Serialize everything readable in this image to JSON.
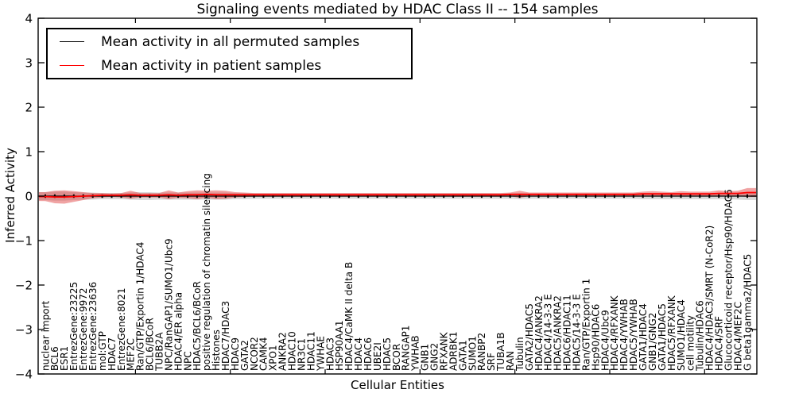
{
  "chart": {
    "title": "Signaling events mediated by HDAC Class II -- 154 samples",
    "xlabel": "Cellular Entities",
    "ylabel": "Inferred Activity"
  },
  "legend": {
    "items": [
      {
        "label": "Mean activity in all permuted samples",
        "color": "#000000"
      },
      {
        "label": "Mean activity in patient samples",
        "color": "#ff0000"
      }
    ]
  },
  "chart_data": {
    "type": "line",
    "title": "Signaling events mediated by HDAC Class II -- 154 samples",
    "xlabel": "Cellular Entities",
    "ylabel": "Inferred Activity",
    "ylim": [
      -4,
      4
    ],
    "grid": false,
    "legend_position": "upper left",
    "y_ticks": [
      {
        "v": 4,
        "label": "4"
      },
      {
        "v": 3,
        "label": "3"
      },
      {
        "v": 2,
        "label": "2"
      },
      {
        "v": 1,
        "label": "1"
      },
      {
        "v": 0,
        "label": "0"
      },
      {
        "v": -1,
        "label": "−1"
      },
      {
        "v": -2,
        "label": "−2"
      },
      {
        "v": -3,
        "label": "−3"
      },
      {
        "v": -4,
        "label": "−4"
      }
    ],
    "x_major_ticks": [
      10,
      20,
      30,
      40,
      50,
      60,
      70
    ],
    "categories": [
      "nuclear import",
      "BCL6",
      "ESR1",
      "EntrezGene:23225",
      "EntrezGene:9972",
      "EntrezGene:23636",
      "mol:GTP",
      "HDAC7",
      "EntrezGene:8021",
      "MEF2C",
      "Ran/GTP/Exportin 1/HDAC4",
      "BCL6/BCoR",
      "TUBB2A",
      "NPC/RanGAP1/SUMO1/Ubc9",
      "HDAC4/ER alpha",
      "NPC",
      "HDAC5/BCL6/BCoR",
      "positive regulation of chromatin silencing",
      "Histones",
      "HDAC7/HDAC3",
      "HDAC9",
      "GATA2",
      "NCOR2",
      "CAMK4",
      "XPO1",
      "ANKRA2",
      "HDAC10",
      "NR3C1",
      "HDAC11",
      "YWHAE",
      "HDAC3",
      "HSP90AA1",
      "HDAC4/CaMK II delta B",
      "HDAC4",
      "HDAC6",
      "UBE2I",
      "HDAC5",
      "BCOR",
      "RANGAP1",
      "YWHAB",
      "GNB1",
      "GNG2",
      "RFXANK",
      "ADRBK1",
      "GATA1",
      "SUMO1",
      "RANBP2",
      "SRF",
      "TUBA1B",
      "RAN",
      "Tubulin",
      "GATA2/HDAC5",
      "HDAC4/ANKRA2",
      "HDAC4/14-3-3 E",
      "HDAC5/ANKRA2",
      "HDAC6/HDAC11",
      "HDAC5/14-3-3 E",
      "Ran/GTP/Exportin 1",
      "Hsp90/HDAC6",
      "HDAC4/Ubc9",
      "HDAC4/RFXANK",
      "HDAC4/YWHAB",
      "HDAC5/YWHAB",
      "GATA1/HDAC4",
      "GNB1/GNG2",
      "GATA1/HDAC5",
      "HDAC5/RFXANK",
      "SUMO1/HDAC4",
      "cell motility",
      "Tubulin/HDAC6",
      "HDAC4/HDAC3/SMRT (N-CoR2)",
      "HDAC4/SRF",
      "Glucocorticoid receptor/Hsp90/HDAC6",
      "HDAC4/MEF2C",
      "G beta1gamma2/HDAC5"
    ],
    "series": [
      {
        "name": "Mean activity in all permuted samples",
        "color": "#000000",
        "band_color": "#aaaaaa",
        "band_opacity": 0.45,
        "markers": true,
        "mean": [
          0,
          0,
          0,
          0,
          0,
          0,
          0,
          0,
          0,
          0,
          0,
          0,
          0,
          0,
          0,
          0,
          0,
          0,
          0,
          0,
          0,
          0,
          0,
          0,
          0,
          0,
          0,
          0,
          0,
          0,
          0,
          0,
          0,
          0,
          0,
          0,
          0,
          0,
          0,
          0,
          0,
          0,
          0,
          0,
          0,
          0,
          0,
          0,
          0,
          0,
          0,
          0,
          0,
          0,
          0,
          0,
          0,
          0,
          0,
          0,
          0,
          0,
          0,
          0,
          0,
          0,
          0,
          0,
          0,
          0,
          0,
          0,
          0,
          0,
          0
        ],
        "band_halfwidth": [
          0.09,
          0.1,
          0.1,
          0.09,
          0.08,
          0.08,
          0.07,
          0.07,
          0.07,
          0.08,
          0.09,
          0.09,
          0.08,
          0.08,
          0.08,
          0.08,
          0.08,
          0.08,
          0.08,
          0.08,
          0.07,
          0.07,
          0.06,
          0.06,
          0.06,
          0.06,
          0.06,
          0.06,
          0.06,
          0.06,
          0.06,
          0.06,
          0.06,
          0.06,
          0.06,
          0.06,
          0.06,
          0.06,
          0.06,
          0.06,
          0.06,
          0.06,
          0.06,
          0.06,
          0.06,
          0.06,
          0.06,
          0.06,
          0.06,
          0.06,
          0.07,
          0.06,
          0.06,
          0.06,
          0.06,
          0.06,
          0.06,
          0.06,
          0.06,
          0.06,
          0.06,
          0.06,
          0.06,
          0.07,
          0.07,
          0.07,
          0.07,
          0.07,
          0.07,
          0.07,
          0.07,
          0.07,
          0.07,
          0.08,
          0.09
        ]
      },
      {
        "name": "Mean activity in patient samples",
        "color": "#ff0000",
        "band_color": "#dd3333",
        "band_opacity": 0.45,
        "markers": false,
        "mean": [
          -0.01,
          -0.02,
          -0.02,
          -0.01,
          0,
          0.01,
          0.02,
          0.02,
          0.02,
          0.03,
          0.02,
          0.02,
          0.02,
          0.03,
          0.02,
          0.03,
          0.03,
          0.04,
          0.03,
          0.03,
          0.03,
          0.03,
          0.03,
          0.03,
          0.03,
          0.03,
          0.03,
          0.03,
          0.03,
          0.03,
          0.03,
          0.03,
          0.03,
          0.03,
          0.03,
          0.03,
          0.03,
          0.03,
          0.03,
          0.03,
          0.03,
          0.03,
          0.03,
          0.03,
          0.03,
          0.03,
          0.03,
          0.03,
          0.03,
          0.04,
          0.04,
          0.04,
          0.04,
          0.04,
          0.04,
          0.04,
          0.04,
          0.04,
          0.04,
          0.04,
          0.04,
          0.04,
          0.04,
          0.05,
          0.05,
          0.05,
          0.05,
          0.05,
          0.05,
          0.05,
          0.05,
          0.06,
          0.06,
          0.06,
          0.08
        ],
        "band_halfwidth": [
          0.1,
          0.14,
          0.15,
          0.12,
          0.09,
          0.06,
          0.05,
          0.04,
          0.05,
          0.09,
          0.05,
          0.05,
          0.05,
          0.1,
          0.06,
          0.08,
          0.1,
          0.08,
          0.1,
          0.09,
          0.06,
          0.05,
          0.04,
          0.04,
          0.04,
          0.04,
          0.04,
          0.04,
          0.04,
          0.04,
          0.04,
          0.04,
          0.04,
          0.04,
          0.04,
          0.04,
          0.04,
          0.04,
          0.04,
          0.04,
          0.04,
          0.04,
          0.04,
          0.04,
          0.04,
          0.04,
          0.04,
          0.04,
          0.04,
          0.04,
          0.08,
          0.04,
          0.04,
          0.04,
          0.04,
          0.04,
          0.04,
          0.04,
          0.04,
          0.04,
          0.04,
          0.04,
          0.04,
          0.05,
          0.06,
          0.05,
          0.04,
          0.06,
          0.05,
          0.05,
          0.05,
          0.07,
          0.05,
          0.06,
          0.1
        ]
      }
    ]
  }
}
